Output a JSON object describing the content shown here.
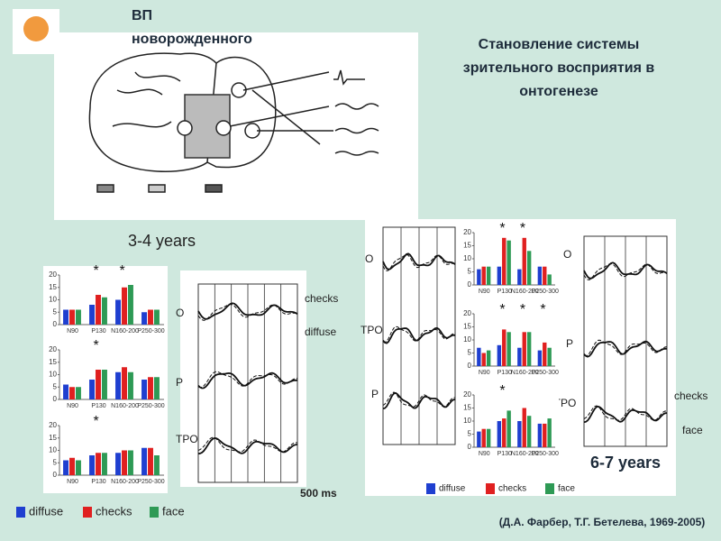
{
  "header": {
    "title_line1": "ВП",
    "title_line2": "новорожденного",
    "main_title_1": "Становление системы",
    "main_title_2": "зрительного восприятия в",
    "main_title_3": "онтогенезе"
  },
  "age_left": "3-4 years",
  "age_right": "6-7 years",
  "legend": {
    "series": [
      {
        "name": "diffuse",
        "color": "#1f3fd0"
      },
      {
        "name": "checks",
        "color": "#e02020"
      },
      {
        "name": "face",
        "color": "#2e9a55"
      }
    ]
  },
  "categories": [
    "N90",
    "P130",
    "N160-200",
    "P250-300"
  ],
  "ylim": [
    0,
    20
  ],
  "yticks": [
    0,
    5,
    10,
    15,
    20
  ],
  "charts": [
    {
      "series": [
        {
          "values": [
            6,
            8,
            10,
            5
          ]
        },
        {
          "values": [
            6,
            12,
            15,
            6
          ]
        },
        {
          "values": [
            6,
            11,
            16,
            6
          ]
        }
      ],
      "stars": [
        "*",
        "*"
      ]
    },
    {
      "series": [
        {
          "values": [
            6,
            8,
            11,
            8
          ]
        },
        {
          "values": [
            5,
            12,
            13,
            9
          ]
        },
        {
          "values": [
            5,
            12,
            11,
            9
          ]
        }
      ],
      "stars": [
        "*"
      ]
    },
    {
      "series": [
        {
          "values": [
            6,
            8,
            9,
            11
          ]
        },
        {
          "values": [
            7,
            9,
            10,
            11
          ]
        },
        {
          "values": [
            6,
            9,
            10,
            8
          ]
        }
      ],
      "stars": [
        "*"
      ]
    },
    {
      "series": [
        {
          "values": [
            6,
            7,
            6,
            7
          ]
        },
        {
          "values": [
            7,
            18,
            18,
            7
          ]
        },
        {
          "values": [
            7,
            17,
            13,
            4
          ]
        }
      ],
      "stars": [
        "*",
        "*"
      ]
    },
    {
      "series": [
        {
          "values": [
            7,
            8,
            7,
            6
          ]
        },
        {
          "values": [
            5,
            14,
            13,
            9
          ]
        },
        {
          "values": [
            6,
            13,
            13,
            7
          ]
        }
      ],
      "stars": [
        "*",
        "*",
        "*"
      ]
    },
    {
      "series": [
        {
          "values": [
            6,
            10,
            10,
            9
          ]
        },
        {
          "values": [
            7,
            11,
            15,
            9
          ]
        },
        {
          "values": [
            7,
            14,
            12,
            11
          ]
        }
      ],
      "stars": [
        "*"
      ]
    }
  ],
  "wave_labels": {
    "o": "O",
    "p": "P",
    "tpo": "TPO",
    "checks": "checks",
    "diffuse": "diffuse",
    "face": "face",
    "time": "500 ms",
    "star_tpo": "*TPO"
  },
  "citation": "(Д.А. Фарбер, Т.Г. Бетелева, 1969-2005)"
}
